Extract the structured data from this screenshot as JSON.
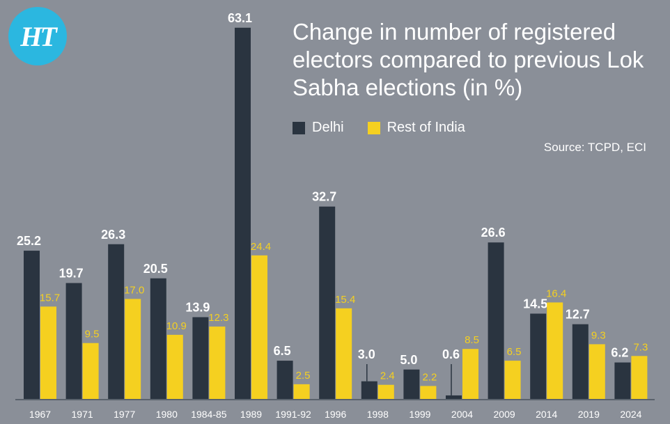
{
  "logo_text": "HT",
  "chart_data": {
    "type": "bar",
    "title": "Change in number of registered electors compared to previous Lok Sabha elections (in %)",
    "source": "Source: TCPD, ECI",
    "categories": [
      "1967",
      "1971",
      "1977",
      "1980",
      "1984-85",
      "1989",
      "1991-92",
      "1996",
      "1998",
      "1999",
      "2004",
      "2009",
      "2014",
      "2019",
      "2024"
    ],
    "series": [
      {
        "name": "Delhi",
        "color": "#2a3440",
        "values": [
          25.2,
          19.7,
          26.3,
          20.5,
          13.9,
          63.1,
          6.5,
          32.7,
          3.0,
          5.0,
          0.6,
          26.6,
          14.5,
          12.7,
          6.2
        ],
        "labels": [
          "25.2",
          "19.7",
          "26.3",
          "20.5",
          "13.9",
          "63.1",
          "6.5",
          "32.7",
          "3.0",
          "5.0",
          "0.6",
          "26.6",
          "14.5",
          "12.7",
          "6.2"
        ]
      },
      {
        "name": "Rest of India",
        "color": "#f5d020",
        "values": [
          15.7,
          9.5,
          17.0,
          10.9,
          12.3,
          24.4,
          2.5,
          15.4,
          2.4,
          2.2,
          8.5,
          6.5,
          16.4,
          9.3,
          7.3
        ],
        "labels": [
          "15.7",
          "9.5",
          "17.0",
          "10.9",
          "12.3",
          "24.4",
          "2.5",
          "15.4",
          "2.4",
          "2.2",
          "8.5",
          "6.5",
          "16.4",
          "9.3",
          "7.3"
        ]
      }
    ],
    "legend_position": "top",
    "grid": false
  }
}
